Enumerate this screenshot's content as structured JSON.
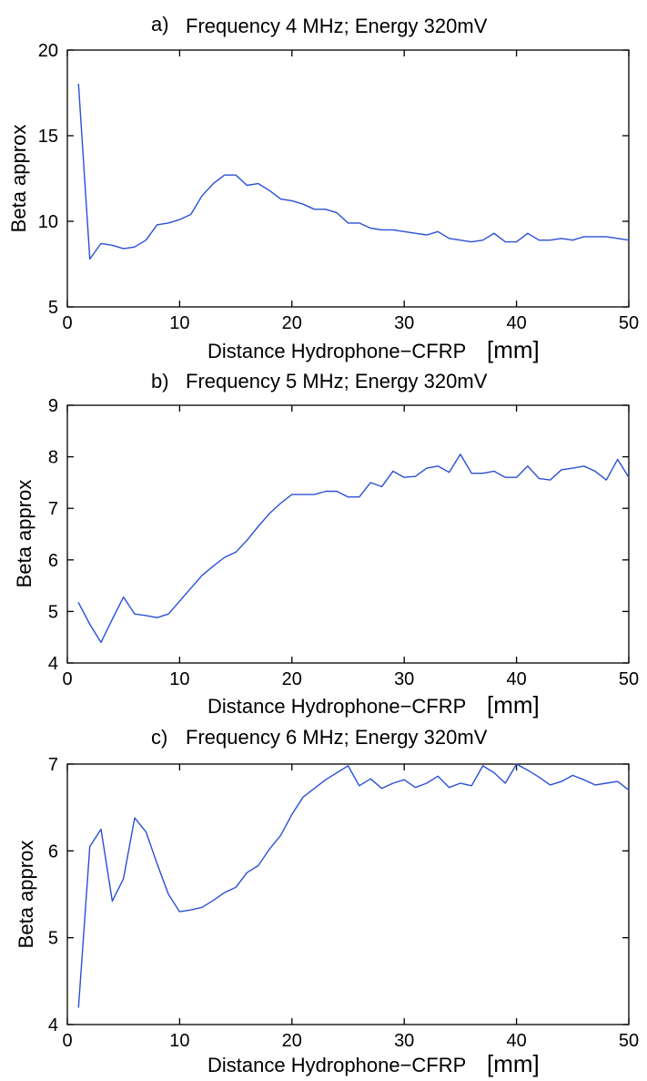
{
  "colors": {
    "line": "#2b4fd6",
    "frame": "#000000",
    "background": "#ffffff"
  },
  "chart_data": [
    {
      "type": "line",
      "title_prefix": "a)",
      "title": "Frequency 4 MHz; Energy 320mV",
      "xlabel": "Distance Hydrophone−CFRP",
      "xlabel_unit": "[mm]",
      "ylabel": "Beta approx",
      "xlim": [
        0,
        50
      ],
      "ylim": [
        5,
        20
      ],
      "xticks": [
        0,
        10,
        20,
        30,
        40,
        50
      ],
      "yticks": [
        5,
        10,
        15,
        20
      ],
      "grid": false,
      "series": [
        {
          "x": [
            1,
            2,
            3,
            4,
            5,
            6,
            7,
            8,
            9,
            10,
            11,
            12,
            13,
            14,
            15,
            16,
            17,
            18,
            19,
            20,
            21,
            22,
            23,
            24,
            25,
            26,
            27,
            28,
            29,
            30,
            31,
            32,
            33,
            34,
            35,
            36,
            37,
            38,
            39,
            40,
            41,
            42,
            43,
            44,
            45,
            46,
            47,
            48,
            49,
            50
          ],
          "values": [
            18.0,
            7.8,
            8.7,
            8.6,
            8.4,
            8.5,
            8.9,
            9.8,
            9.9,
            10.1,
            10.4,
            11.5,
            12.2,
            12.7,
            12.7,
            12.1,
            12.2,
            11.8,
            11.3,
            11.2,
            11.0,
            10.7,
            10.7,
            10.5,
            9.9,
            9.9,
            9.6,
            9.5,
            9.5,
            9.4,
            9.3,
            9.2,
            9.4,
            9.0,
            8.9,
            8.8,
            8.9,
            9.3,
            8.8,
            8.8,
            9.3,
            8.9,
            8.9,
            9.0,
            8.9,
            9.1,
            9.1,
            9.1,
            9.0,
            8.9
          ]
        }
      ]
    },
    {
      "type": "line",
      "title_prefix": "b)",
      "title": "Frequency 5 MHz; Energy 320mV",
      "xlabel": "Distance Hydrophone−CFRP",
      "xlabel_unit": "[mm]",
      "ylabel": "Beta approx",
      "xlim": [
        0,
        50
      ],
      "ylim": [
        4,
        9
      ],
      "xticks": [
        0,
        10,
        20,
        30,
        40,
        50
      ],
      "yticks": [
        4,
        5,
        6,
        7,
        8,
        9
      ],
      "grid": false,
      "series": [
        {
          "x": [
            1,
            2,
            3,
            4,
            5,
            6,
            7,
            8,
            9,
            10,
            11,
            12,
            13,
            14,
            15,
            16,
            17,
            18,
            19,
            20,
            21,
            22,
            23,
            24,
            25,
            26,
            27,
            28,
            29,
            30,
            31,
            32,
            33,
            34,
            35,
            36,
            37,
            38,
            39,
            40,
            41,
            42,
            43,
            44,
            45,
            46,
            47,
            48,
            49,
            50
          ],
          "values": [
            5.17,
            4.75,
            4.4,
            4.85,
            5.28,
            4.95,
            4.92,
            4.88,
            4.95,
            5.2,
            5.45,
            5.7,
            5.88,
            6.05,
            6.15,
            6.38,
            6.65,
            6.9,
            7.1,
            7.27,
            7.27,
            7.27,
            7.33,
            7.33,
            7.22,
            7.22,
            7.5,
            7.42,
            7.72,
            7.6,
            7.62,
            7.78,
            7.82,
            7.7,
            8.05,
            7.68,
            7.68,
            7.72,
            7.6,
            7.6,
            7.82,
            7.58,
            7.55,
            7.75,
            7.78,
            7.82,
            7.72,
            7.55,
            7.95,
            7.6
          ]
        }
      ]
    },
    {
      "type": "line",
      "title_prefix": "c)",
      "title": "Frequency 6 MHz; Energy 320mV",
      "xlabel": "Distance Hydrophone−CFRP",
      "xlabel_unit": "[mm]",
      "ylabel": "Beta approx",
      "xlim": [
        0,
        50
      ],
      "ylim": [
        4,
        7
      ],
      "xticks": [
        0,
        10,
        20,
        30,
        40,
        50
      ],
      "yticks": [
        4,
        5,
        6,
        7
      ],
      "grid": false,
      "series": [
        {
          "x": [
            1,
            2,
            3,
            4,
            5,
            6,
            7,
            8,
            9,
            10,
            11,
            12,
            13,
            14,
            15,
            16,
            17,
            18,
            19,
            20,
            21,
            22,
            23,
            24,
            25,
            26,
            27,
            28,
            29,
            30,
            31,
            32,
            33,
            34,
            35,
            36,
            37,
            38,
            39,
            40,
            41,
            42,
            43,
            44,
            45,
            46,
            47,
            48,
            49,
            50
          ],
          "values": [
            4.2,
            6.05,
            6.25,
            5.42,
            5.68,
            6.38,
            6.22,
            5.85,
            5.5,
            5.3,
            5.32,
            5.35,
            5.43,
            5.52,
            5.58,
            5.75,
            5.83,
            6.02,
            6.18,
            6.42,
            6.62,
            6.72,
            6.82,
            6.9,
            6.98,
            6.75,
            6.83,
            6.72,
            6.78,
            6.82,
            6.73,
            6.78,
            6.86,
            6.73,
            6.78,
            6.75,
            6.98,
            6.9,
            6.78,
            7.0,
            6.93,
            6.85,
            6.76,
            6.8,
            6.87,
            6.82,
            6.76,
            6.78,
            6.8,
            6.7
          ]
        }
      ]
    }
  ]
}
